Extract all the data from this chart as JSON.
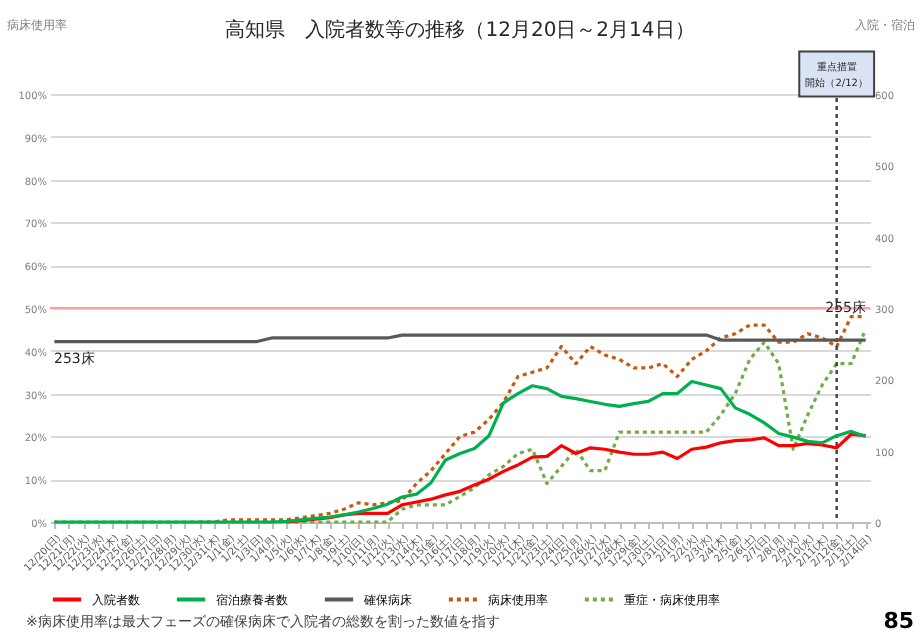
{
  "chart_data": {
    "type": "line",
    "title": "高知県　入院者数等の推移（12月20日～2月14日）",
    "ylabel": "病床使用率",
    "y2label": "入院・宿泊",
    "categories": [
      "12/20(日)",
      "12/21(月)",
      "12/22(火)",
      "12/23(水)",
      "12/24(木)",
      "12/25(金)",
      "12/26(土)",
      "12/27(日)",
      "12/28(月)",
      "12/29(火)",
      "12/30(水)",
      "12/31(木)",
      "1/1(金)",
      "1/2(土)",
      "1/3(日)",
      "1/4(月)",
      "1/5(火)",
      "1/6(水)",
      "1/7(木)",
      "1/8(金)",
      "1/9(土)",
      "1/10(日)",
      "1/11(月)",
      "1/12(火)",
      "1/13(水)",
      "1/14(木)",
      "1/15(金)",
      "1/16(土)",
      "1/17(日)",
      "1/18(月)",
      "1/19(火)",
      "1/20(水)",
      "1/21(木)",
      "1/22(金)",
      "1/23(土)",
      "1/24(日)",
      "1/25(月)",
      "1/26(火)",
      "1/27(水)",
      "1/28(木)",
      "1/29(金)",
      "1/30(土)",
      "1/31(日)",
      "2/1(月)",
      "2/2(火)",
      "2/3(水)",
      "2/4(木)",
      "2/5(金)",
      "2/6(土)",
      "2/7(日)",
      "2/8(月)",
      "2/9(火)",
      "2/10(水)",
      "2/11(木)",
      "2/12(金)",
      "2/13(土)",
      "2/14(日)"
    ],
    "series": [
      {
        "name": "入院者数",
        "color": "#ff0000",
        "axis": "y2",
        "line_style": "solid",
        "values": [
          null,
          null,
          null,
          null,
          null,
          null,
          null,
          null,
          null,
          null,
          null,
          null,
          null,
          null,
          null,
          null,
          0,
          2,
          4,
          6,
          10,
          12,
          12,
          12,
          24,
          28,
          32,
          38,
          43,
          52,
          60,
          71,
          80,
          91,
          92,
          107,
          96,
          104,
          102,
          98,
          95,
          95,
          98,
          89,
          102,
          105,
          111,
          114,
          115,
          118,
          107,
          107,
          110,
          108,
          104,
          123,
          121
        ]
      },
      {
        "name": "宿泊療養者数",
        "color": "#00b050",
        "axis": "y2",
        "line_style": "solid",
        "values": [
          0,
          0,
          0,
          0,
          0,
          0,
          0,
          0,
          0,
          0,
          0,
          0,
          0,
          0,
          0,
          0,
          1,
          3,
          5,
          7,
          10,
          14,
          19,
          25,
          35,
          39,
          55,
          87,
          96,
          103,
          121,
          167,
          180,
          191,
          187,
          176,
          173,
          169,
          165,
          162,
          166,
          169,
          180,
          180,
          197,
          192,
          187,
          160,
          151,
          139,
          124,
          119,
          113,
          111,
          121,
          127,
          120
        ]
      },
      {
        "name": "確保病床",
        "color": "#595959",
        "axis": "y2",
        "line_style": "solid",
        "values": [
          253,
          253,
          253,
          253,
          253,
          253,
          253,
          253,
          253,
          253,
          253,
          253,
          253,
          253,
          253,
          258,
          258,
          258,
          258,
          258,
          258,
          258,
          258,
          258,
          262,
          262,
          262,
          262,
          262,
          262,
          262,
          262,
          262,
          262,
          262,
          262,
          262,
          262,
          262,
          262,
          262,
          262,
          262,
          262,
          262,
          262,
          255,
          255,
          255,
          255,
          255,
          255,
          255,
          255,
          255,
          255,
          255
        ]
      },
      {
        "name": "病床使用率",
        "color": "#c55a11",
        "line_style": "dotted",
        "values": [
          null,
          null,
          null,
          null,
          null,
          null,
          null,
          null,
          null,
          null,
          0,
          0,
          0.5,
          0.5,
          0.5,
          0.5,
          0.5,
          1,
          1.5,
          2,
          3,
          4.5,
          4,
          4.5,
          5,
          9,
          12,
          16,
          20,
          21,
          24,
          28,
          34,
          35,
          36,
          41,
          37,
          41,
          39,
          38,
          36,
          36,
          37,
          34,
          38,
          40,
          43,
          44,
          46,
          46,
          42,
          42,
          44,
          43,
          41,
          48,
          48
        ]
      },
      {
        "name": "重症・病床使用率",
        "color": "#70ad47",
        "line_style": "dotted",
        "values": [
          0,
          0,
          0,
          0,
          0,
          0,
          0,
          0,
          0,
          0,
          0,
          0,
          0,
          0,
          0,
          0,
          0,
          0,
          0,
          0,
          0,
          0,
          0,
          0,
          3,
          4,
          4,
          4,
          6,
          8,
          11,
          13,
          16,
          17,
          9,
          13,
          17,
          12,
          12,
          21,
          21,
          21,
          21,
          21,
          21,
          21,
          25,
          30,
          38,
          42,
          37,
          17,
          25,
          32,
          37,
          37,
          45
        ]
      }
    ],
    "ylim": [
      0,
      100
    ],
    "yticks": [
      {
        "value": 0,
        "label": "0%"
      },
      {
        "value": 10,
        "label": "10%"
      },
      {
        "value": 20,
        "label": "20%"
      },
      {
        "value": 30,
        "label": "30%"
      },
      {
        "value": 40,
        "label": "40%"
      },
      {
        "value": 50,
        "label": "50%"
      },
      {
        "value": 60,
        "label": "60%"
      },
      {
        "value": 70,
        "label": "70%"
      },
      {
        "value": 80,
        "label": "80%"
      },
      {
        "value": 90,
        "label": "90%"
      },
      {
        "value": 100,
        "label": "100%"
      }
    ],
    "y2lim": [
      0,
      600
    ],
    "y2ticks": [
      0,
      100,
      200,
      300,
      400,
      500,
      600
    ],
    "ref_lines": [
      {
        "axis": "y",
        "value": 50,
        "label": null,
        "color": "#ff9f9f",
        "line_style": "solid"
      },
      {
        "axis": "x",
        "value": "2/12(金)",
        "label": "重点措置開始（2/12）",
        "color": "#404040",
        "line_style": "dotted"
      }
    ],
    "annotations": [
      "253床",
      "255床",
      "※病床使用率は最大フェーズの確保病床で入院者の総数を割った数値を指す",
      "85"
    ],
    "grid": "y",
    "legend": "bottom",
    "marker": "none"
  }
}
